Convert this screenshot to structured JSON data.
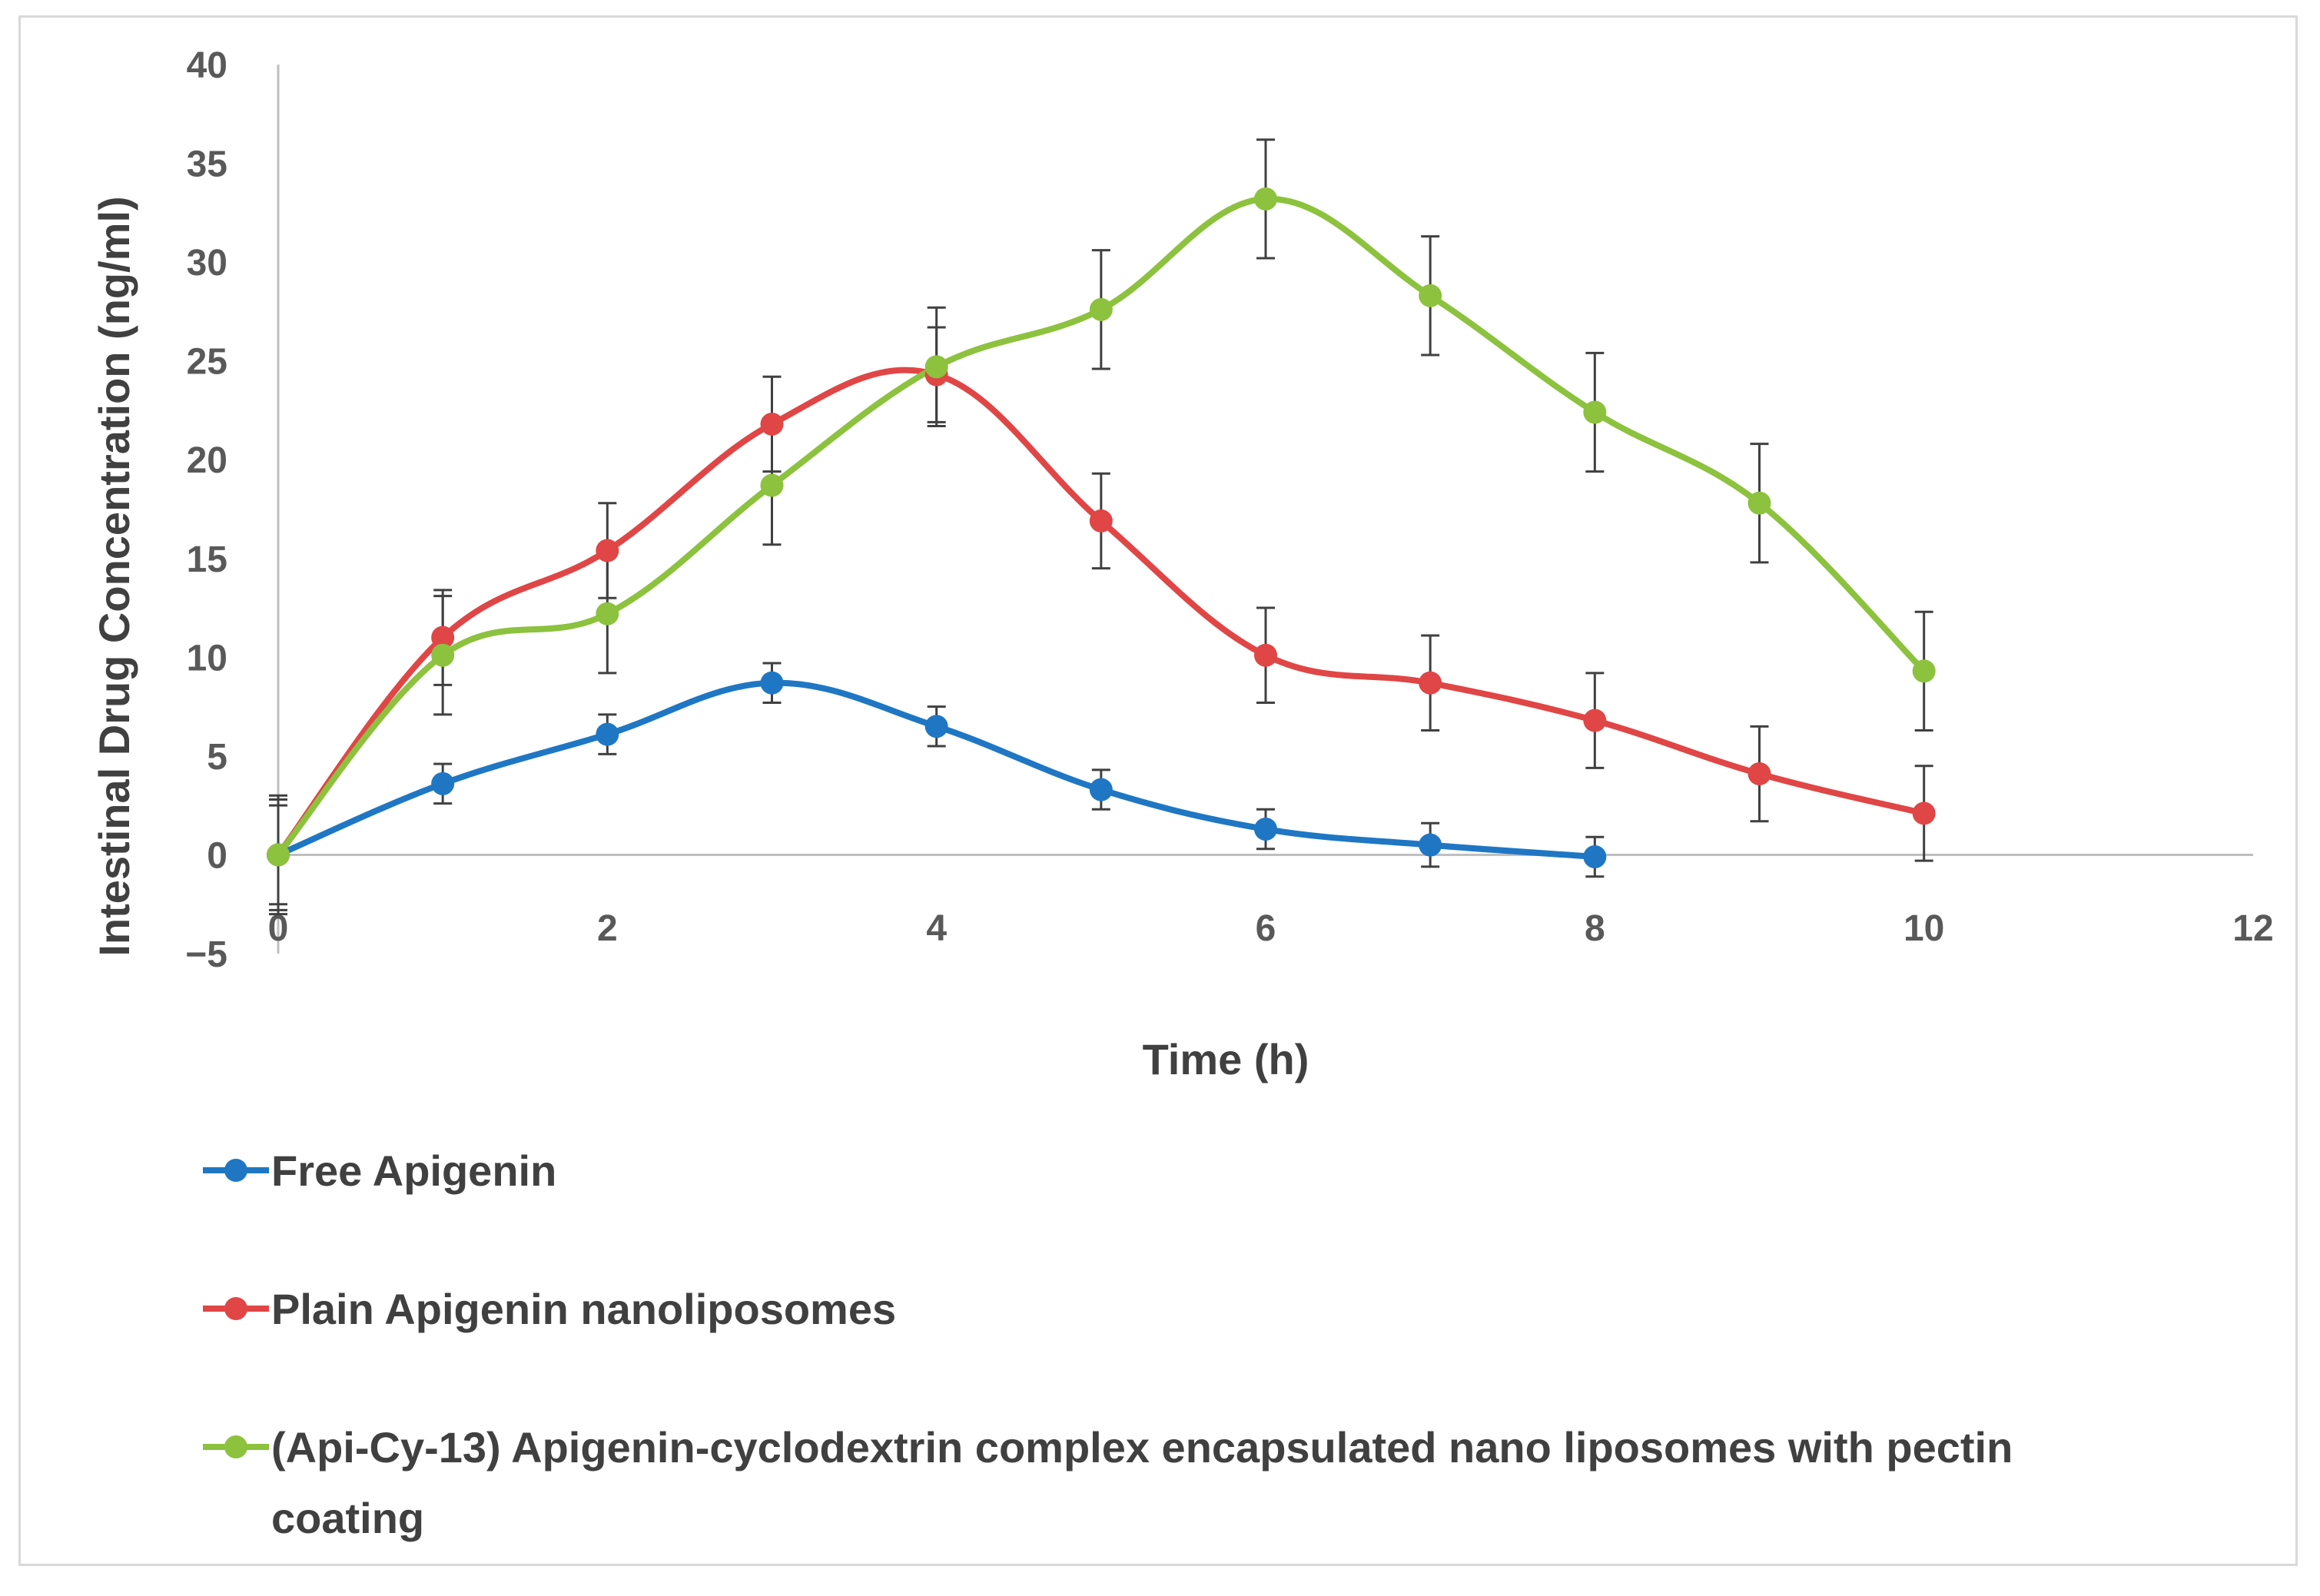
{
  "chart_data": {
    "type": "line",
    "title": "",
    "xlabel": "Time (h)",
    "ylabel": "Intestinal Drug Concentration (ng/ml)",
    "xlim": [
      0,
      12
    ],
    "ylim": [
      -5,
      40
    ],
    "xticks": [
      0,
      2,
      4,
      6,
      8,
      10,
      12
    ],
    "yticks": [
      -5,
      0,
      5,
      10,
      15,
      20,
      25,
      30,
      35,
      40
    ],
    "ytick_labels": [
      "−5",
      "0",
      "5",
      "10",
      "15",
      "20",
      "25",
      "30",
      "35",
      "40"
    ],
    "grid": false,
    "legend_position": "bottom",
    "series": [
      {
        "name": "Free Apigenin",
        "color": "#1f77c4",
        "x": [
          0,
          1,
          2,
          3,
          4,
          5,
          6,
          7,
          8
        ],
        "y": [
          0,
          3.6,
          6.1,
          8.7,
          6.5,
          3.3,
          1.3,
          0.5,
          -0.1
        ],
        "error": [
          2.8,
          1.0,
          1.0,
          1.0,
          1.0,
          1.0,
          1.0,
          1.1,
          1.0
        ]
      },
      {
        "name": "Plain Apigenin nanoliposomes",
        "color": "#e04646",
        "x": [
          0,
          1,
          2,
          3,
          4,
          5,
          6,
          7,
          8,
          9,
          10
        ],
        "y": [
          0,
          11.0,
          15.4,
          21.8,
          24.3,
          16.9,
          10.1,
          8.7,
          6.8,
          4.1,
          2.1
        ],
        "error": [
          2.5,
          2.4,
          2.4,
          2.4,
          2.4,
          2.4,
          2.4,
          2.4,
          2.4,
          2.4,
          2.4
        ]
      },
      {
        "name": "(Api-Cy-13) Apigenin-cyclodextrin complex encapsulated nano liposomes with pectin coating",
        "color": "#8cc23e",
        "x": [
          0,
          1,
          2,
          3,
          4,
          5,
          6,
          7,
          8,
          9,
          10
        ],
        "y": [
          0,
          10.1,
          12.2,
          18.7,
          24.7,
          27.6,
          33.2,
          28.3,
          22.4,
          17.8,
          9.3
        ],
        "error": [
          3.0,
          3.0,
          3.0,
          3.0,
          3.0,
          3.0,
          3.0,
          3.0,
          3.0,
          3.0,
          3.0
        ]
      }
    ],
    "legend": {
      "items": [
        {
          "lines": [
            "Free Apigenin"
          ]
        },
        {
          "lines": [
            "Plain Apigenin nanoliposomes"
          ]
        },
        {
          "lines": [
            "(Api-Cy-13) Apigenin-cyclodextrin complex encapsulated nano liposomes with pectin",
            "coating"
          ]
        }
      ]
    }
  }
}
